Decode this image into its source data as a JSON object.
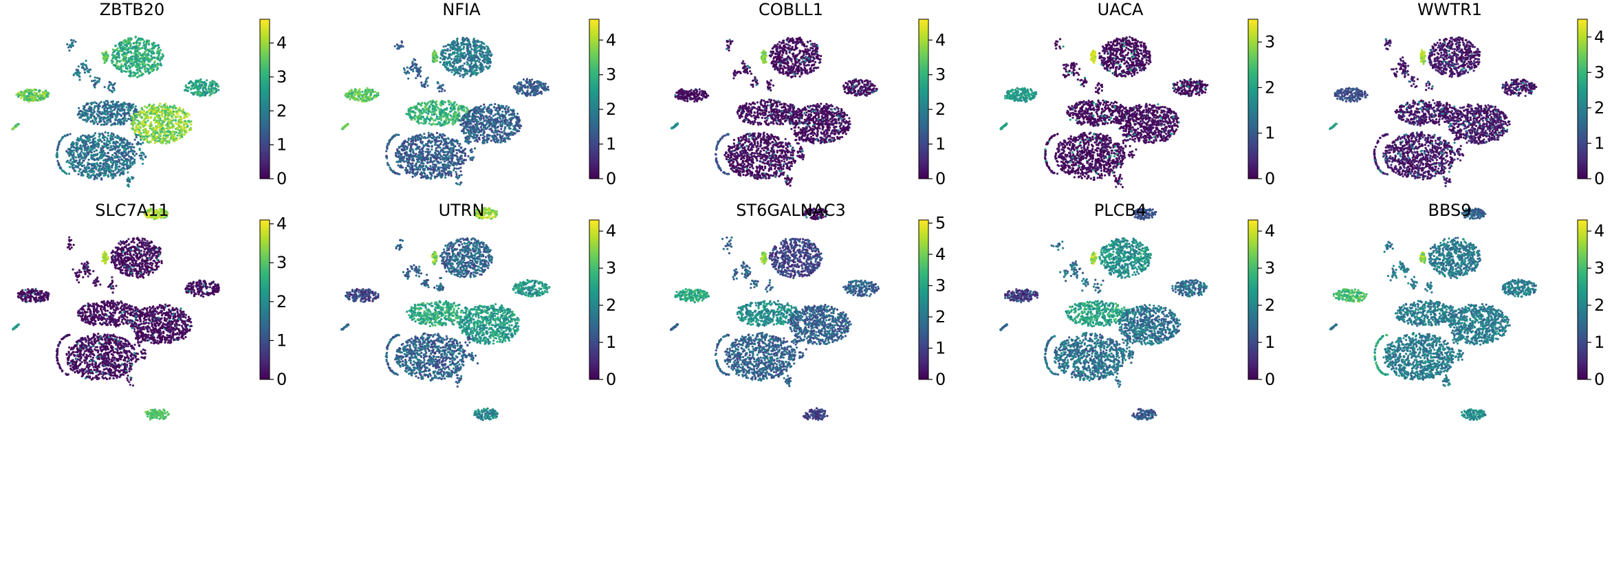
{
  "figure": {
    "colormap": "viridis",
    "colormap_stops": [
      "#440154",
      "#482878",
      "#3e4989",
      "#31688e",
      "#26828e",
      "#1f9e89",
      "#35b779",
      "#6ece58",
      "#b5de2b",
      "#fde725"
    ],
    "background_color": "#ffffff",
    "rows": 2,
    "cols": 5
  },
  "chart_data": [
    {
      "type": "scatter",
      "title": "ZBTB20",
      "colorbar_ticks": [
        "0",
        "1",
        "2",
        "3",
        "4"
      ],
      "color_range": [
        0,
        4.7
      ],
      "base_level": 1.8,
      "spread": 0.7,
      "hot_groups": [
        [
          "right-blob",
          3.8
        ],
        [
          "left-blob",
          3.6
        ],
        [
          "bottom-blob",
          4.1
        ],
        [
          "top-blob",
          3.0
        ],
        [
          "left-stick",
          3.3
        ],
        [
          "small-spike",
          3.5
        ],
        [
          "upper-right-blob",
          2.8
        ]
      ]
    },
    {
      "type": "scatter",
      "title": "NFIA",
      "colorbar_ticks": [
        "0",
        "1",
        "2",
        "3",
        "4"
      ],
      "color_range": [
        0,
        4.6
      ],
      "base_level": 1.4,
      "spread": 0.6,
      "hot_groups": [
        [
          "left-blob",
          3.4
        ],
        [
          "bottom-blob",
          3.9
        ],
        [
          "left-stick",
          3.6
        ],
        [
          "small-spike",
          3.4
        ],
        [
          "central-arm",
          3.0
        ],
        [
          "top-blob",
          1.9
        ]
      ]
    },
    {
      "type": "scatter",
      "title": "COBLL1",
      "colorbar_ticks": [
        "0",
        "1",
        "2",
        "3",
        "4"
      ],
      "color_range": [
        0,
        4.6
      ],
      "base_level": 0.15,
      "spread": 0.3,
      "hot_groups": [
        [
          "small-spike",
          3.7
        ],
        [
          "left-stick",
          2.3
        ],
        [
          "loop",
          1.2
        ]
      ]
    },
    {
      "type": "scatter",
      "title": "UACA",
      "colorbar_ticks": [
        "0",
        "1",
        "2",
        "3"
      ],
      "color_range": [
        0,
        3.5
      ],
      "base_level": 0.1,
      "spread": 0.25,
      "hot_groups": [
        [
          "small-spike",
          3.2
        ],
        [
          "left-blob",
          1.9
        ],
        [
          "left-stick",
          2.0
        ],
        [
          "bottom-blob",
          0.9
        ]
      ]
    },
    {
      "type": "scatter",
      "title": "WWTR1",
      "colorbar_ticks": [
        "0",
        "1",
        "2",
        "3",
        "4"
      ],
      "color_range": [
        0,
        4.5
      ],
      "base_level": 0.3,
      "spread": 0.4,
      "hot_groups": [
        [
          "small-spike",
          3.8
        ],
        [
          "left-stick",
          2.5
        ],
        [
          "bottom-blob",
          1.4
        ],
        [
          "left-blob",
          1.1
        ]
      ]
    },
    {
      "type": "scatter",
      "title": "SLC7A11",
      "colorbar_ticks": [
        "0",
        "1",
        "2",
        "3",
        "4"
      ],
      "color_range": [
        0,
        4.1
      ],
      "base_level": 0.15,
      "spread": 0.25,
      "hot_groups": [
        [
          "bottom-blob",
          3.0
        ],
        [
          "small-spike",
          3.6
        ],
        [
          "left-stick",
          2.2
        ]
      ]
    },
    {
      "type": "scatter",
      "title": "UTRN",
      "colorbar_ticks": [
        "0",
        "1",
        "2",
        "3",
        "4"
      ],
      "color_range": [
        0,
        4.3
      ],
      "base_level": 1.4,
      "spread": 0.6,
      "hot_groups": [
        [
          "small-spike",
          3.6
        ],
        [
          "central-arm",
          2.6
        ],
        [
          "right-blob",
          2.4
        ],
        [
          "upper-right-blob",
          2.3
        ],
        [
          "left-blob",
          0.9
        ],
        [
          "bottom-blob",
          2.0
        ]
      ]
    },
    {
      "type": "scatter",
      "title": "ST6GALNAC3",
      "colorbar_ticks": [
        "0",
        "1",
        "2",
        "3",
        "4",
        "5"
      ],
      "color_range": [
        0,
        5.1
      ],
      "base_level": 1.6,
      "spread": 0.6,
      "hot_groups": [
        [
          "left-blob",
          3.1
        ],
        [
          "small-spike",
          4.3
        ],
        [
          "central-arm",
          2.5
        ],
        [
          "bottom-blob",
          1.0
        ],
        [
          "top-blob",
          1.0
        ]
      ]
    },
    {
      "type": "scatter",
      "title": "PLCB4",
      "colorbar_ticks": [
        "0",
        "1",
        "2",
        "3",
        "4"
      ],
      "color_range": [
        0,
        4.3
      ],
      "base_level": 1.6,
      "spread": 0.6,
      "hot_groups": [
        [
          "small-spike",
          3.7
        ],
        [
          "left-blob",
          0.8
        ],
        [
          "central-arm",
          2.5
        ],
        [
          "top-blob",
          2.2
        ],
        [
          "bottom-blob",
          1.2
        ]
      ]
    },
    {
      "type": "scatter",
      "title": "BBS9",
      "colorbar_ticks": [
        "0",
        "1",
        "2",
        "3",
        "4"
      ],
      "color_range": [
        0,
        4.3
      ],
      "base_level": 1.8,
      "spread": 0.5,
      "hot_groups": [
        [
          "left-blob",
          3.0
        ],
        [
          "small-spike",
          3.6
        ],
        [
          "loop",
          2.6
        ],
        [
          "bottom-blob",
          2.1
        ]
      ]
    }
  ]
}
